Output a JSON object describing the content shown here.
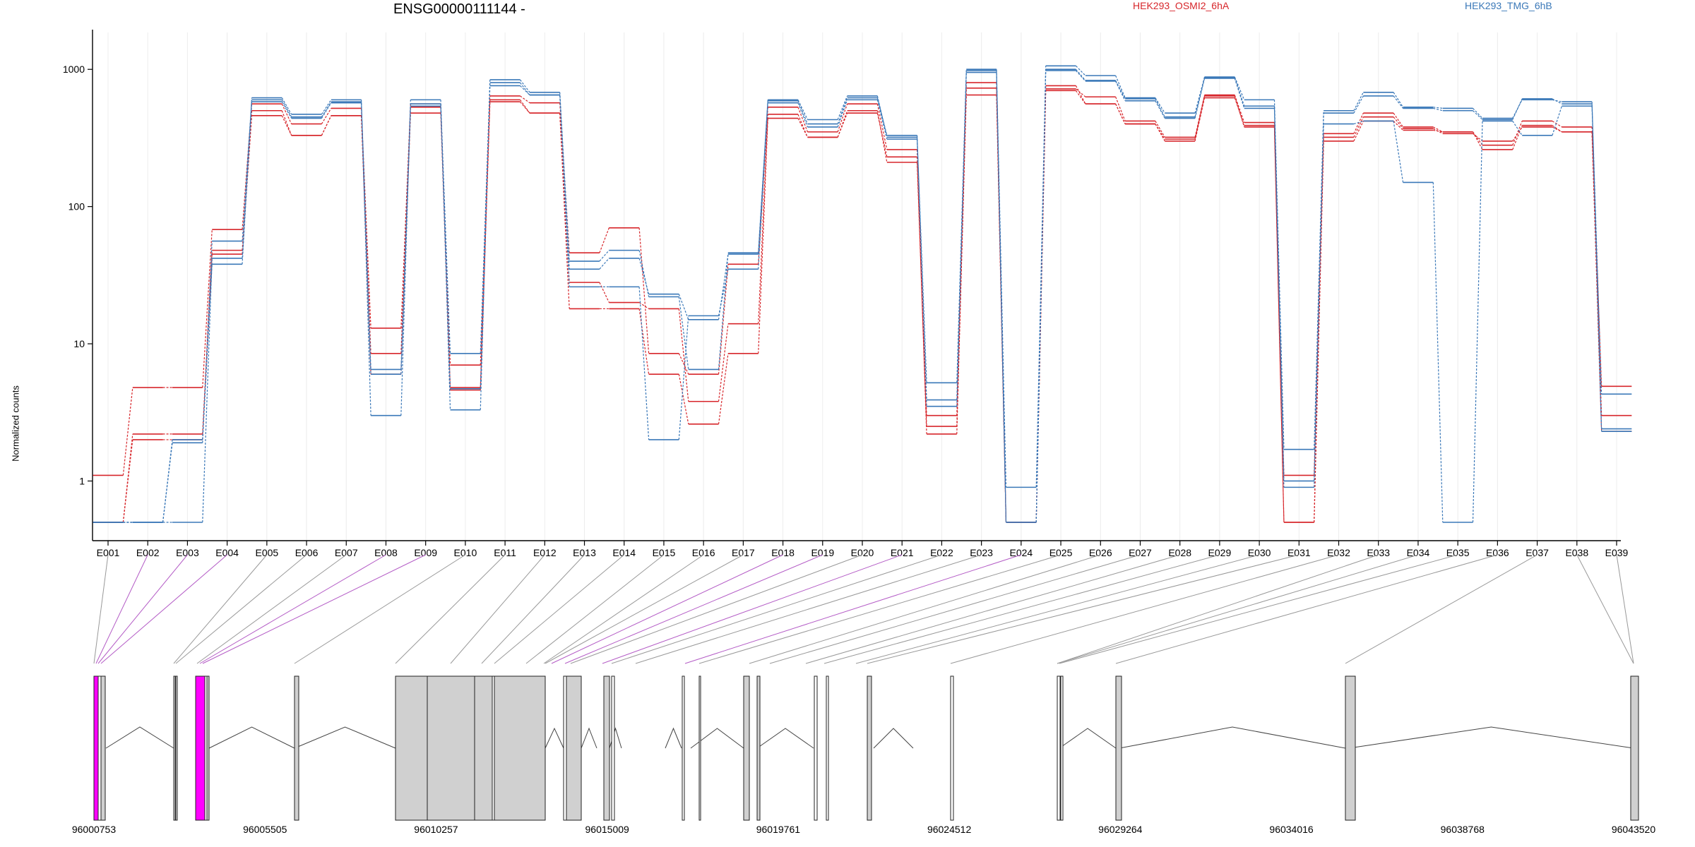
{
  "chart_data": {
    "type": "line",
    "title": "ENSG00000111144 -",
    "ylabel": "Normalized counts",
    "y_scale": "log",
    "ylim": [
      0.5,
      1500
    ],
    "y_ticks": [
      1,
      10,
      100,
      1000
    ],
    "y_tick_labels": [
      "1",
      "10",
      "100",
      "1000"
    ],
    "categories": [
      "E001",
      "E002",
      "E003",
      "E004",
      "E005",
      "E006",
      "E007",
      "E008",
      "E009",
      "E010",
      "E011",
      "E012",
      "E013",
      "E014",
      "E015",
      "E016",
      "E017",
      "E018",
      "E019",
      "E020",
      "E021",
      "E022",
      "E023",
      "E024",
      "E025",
      "E026",
      "E027",
      "E028",
      "E029",
      "E030",
      "E031",
      "E032",
      "E033",
      "E034",
      "E035",
      "E036",
      "E037",
      "E038",
      "E039"
    ],
    "legend": [
      {
        "name": "HEK293_OSMI2_6hA",
        "color": "#d7262b"
      },
      {
        "name": "HEK293_TMG_6hB",
        "color": "#3a78b8"
      }
    ],
    "series": [
      {
        "group": "HEK293_OSMI2_6hA",
        "color": "#d7262b",
        "values": [
          1.1,
          4.8,
          4.8,
          68,
          560,
          400,
          520,
          13,
          560,
          7,
          640,
          570,
          46,
          70,
          8.5,
          6,
          38,
          530,
          350,
          560,
          260,
          3,
          800,
          0.5,
          720,
          630,
          420,
          320,
          650,
          410,
          1.1,
          340,
          480,
          380,
          350,
          280,
          420,
          380,
          4.9
        ]
      },
      {
        "group": "HEK293_OSMI2_6hA",
        "color": "#d7262b",
        "values": [
          0.5,
          2.2,
          2.2,
          48,
          500,
          330,
          460,
          8.5,
          530,
          4.8,
          600,
          480,
          28,
          20,
          18,
          3.8,
          14,
          470,
          320,
          500,
          210,
          2.5,
          650,
          0.5,
          700,
          560,
          400,
          300,
          620,
          390,
          0.5,
          300,
          420,
          360,
          350,
          260,
          390,
          350,
          3
        ]
      },
      {
        "group": "HEK293_OSMI2_6hA",
        "color": "#d7262b",
        "values": [
          0.5,
          2.0,
          2.0,
          45,
          460,
          330,
          460,
          6,
          480,
          4.6,
          580,
          480,
          18,
          18,
          6,
          2.6,
          8.5,
          440,
          320,
          480,
          230,
          2.2,
          730,
          0.5,
          760,
          560,
          400,
          310,
          640,
          380,
          0.5,
          320,
          450,
          370,
          340,
          300,
          380,
          350,
          2.3
        ]
      },
      {
        "group": "HEK293_TMG_6hB",
        "color": "#3a78b8",
        "values": [
          0.5,
          0.5,
          2.0,
          38,
          620,
          470,
          600,
          3,
          600,
          3.3,
          840,
          680,
          40,
          48,
          22,
          6.5,
          46,
          600,
          430,
          640,
          320,
          5.2,
          1000,
          0.9,
          1060,
          900,
          620,
          480,
          880,
          600,
          1.7,
          500,
          680,
          530,
          520,
          440,
          600,
          580,
          2.3
        ]
      },
      {
        "group": "HEK293_TMG_6hB",
        "color": "#3a78b8",
        "values": [
          0.5,
          0.5,
          1.9,
          56,
          600,
          450,
          580,
          6.5,
          560,
          8.5,
          800,
          650,
          35,
          42,
          23,
          15,
          45,
          590,
          400,
          620,
          330,
          3.5,
          980,
          0.5,
          1000,
          830,
          610,
          450,
          870,
          540,
          1,
          480,
          640,
          520,
          500,
          430,
          610,
          560,
          4.3
        ]
      },
      {
        "group": "HEK293_TMG_6hB",
        "color": "#3a78b8",
        "values": [
          0.5,
          0.5,
          0.5,
          42,
          580,
          440,
          570,
          6,
          540,
          4.7,
          760,
          650,
          26,
          26,
          2,
          16,
          35,
          570,
          380,
          600,
          310,
          3.9,
          950,
          0.5,
          980,
          820,
          590,
          440,
          860,
          520,
          0.9,
          400,
          420,
          150,
          0.5,
          420,
          330,
          540,
          2.4
        ]
      }
    ],
    "gene_axis": {
      "tick_labels": [
        "96000753",
        "96005505",
        "96010257",
        "96015009",
        "96019761",
        "96024512",
        "96029264",
        "96034016",
        "96038768",
        "96043520"
      ]
    }
  }
}
